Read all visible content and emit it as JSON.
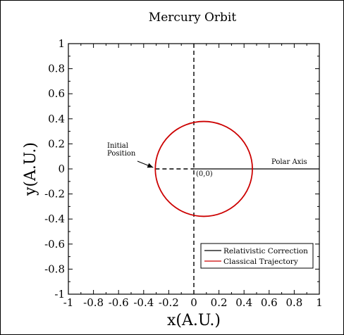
{
  "chart_data": {
    "type": "line",
    "title": "Mercury Orbit",
    "xlabel": "x(A.U.)",
    "ylabel": "y(A.U.)",
    "xlim": [
      -1,
      1
    ],
    "ylim": [
      -1,
      1
    ],
    "x_ticks": [
      -1,
      -0.8,
      -0.6,
      -0.4,
      -0.2,
      0,
      0.2,
      0.4,
      0.6,
      0.8,
      1
    ],
    "y_ticks": [
      -1,
      -0.8,
      -0.6,
      -0.4,
      -0.2,
      0,
      0.2,
      0.4,
      0.6,
      0.8,
      1
    ],
    "tick_labels": [
      "-1",
      "-0.8",
      "-0.6",
      "-0.4",
      "-0.2",
      "0",
      "0.2",
      "0.4",
      "0.6",
      "0.8",
      "1"
    ],
    "grid": false,
    "legend_position": "bottom-right",
    "series": [
      {
        "name": "Relativistic Correction",
        "color": "#000000",
        "points": [
          [
            0,
            0
          ],
          [
            1,
            0
          ]
        ]
      },
      {
        "name": "Classical Trajectory",
        "color": "#cc0000",
        "center": [
          0.0796,
          0
        ],
        "semi_major_axis": 0.387,
        "eccentricity": 0.2056
      }
    ],
    "reference_lines": [
      {
        "style": "dashed",
        "points": [
          [
            -0.307,
            0
          ],
          [
            0,
            0
          ]
        ]
      },
      {
        "style": "dashed",
        "points": [
          [
            0,
            -1
          ],
          [
            0,
            1
          ]
        ]
      }
    ],
    "annotations": {
      "initial_position": "Initial\nPosition",
      "initial_position_point": [
        -0.307,
        0
      ],
      "origin": "(0,0)",
      "polar_axis": "Polar Axis"
    }
  }
}
